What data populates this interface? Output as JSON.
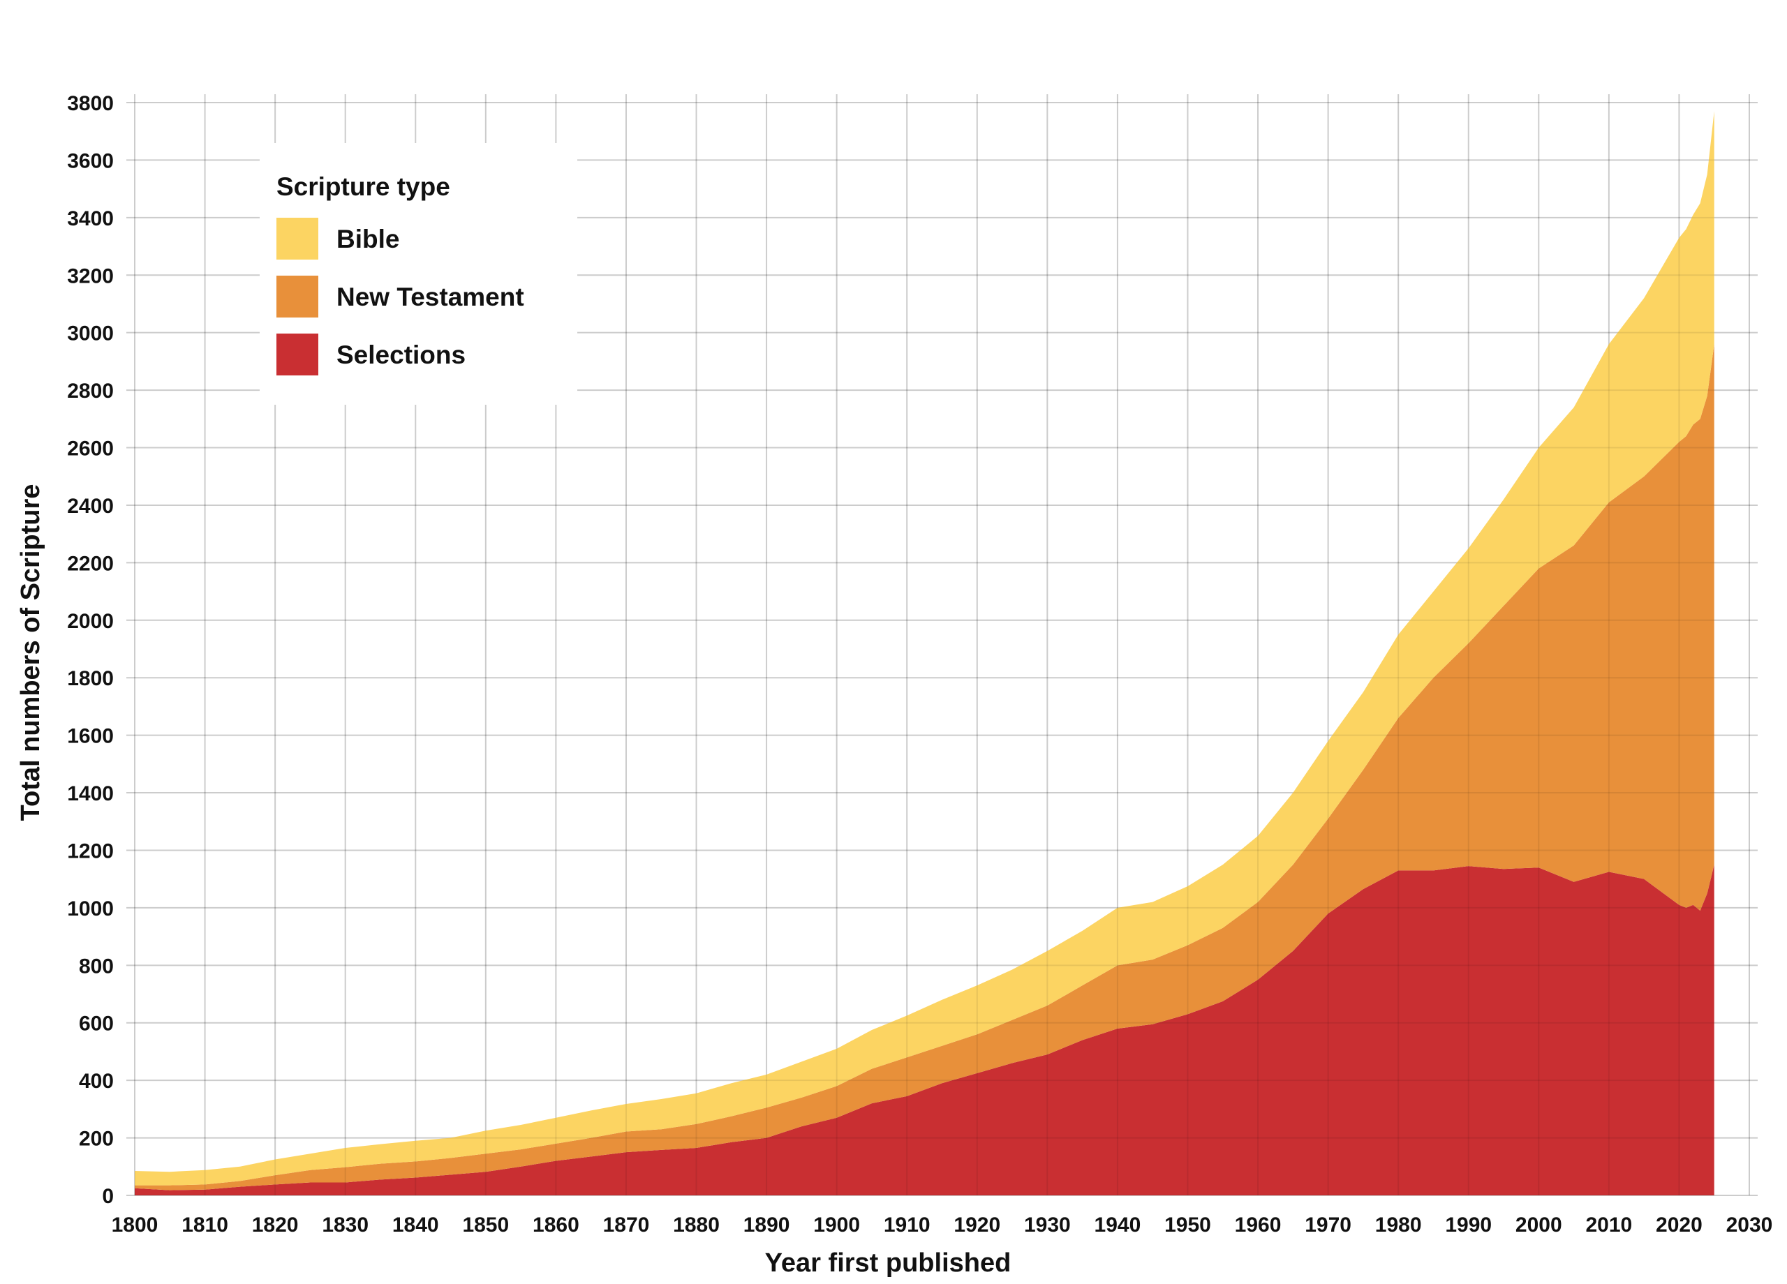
{
  "chart_data": {
    "type": "area",
    "stacked": true,
    "xlabel": "Year first published",
    "ylabel": "Total numbers of Scripture",
    "xlim": [
      1800,
      2030
    ],
    "ylim": [
      0,
      3800
    ],
    "xticks": [
      1800,
      1810,
      1820,
      1830,
      1840,
      1850,
      1860,
      1870,
      1880,
      1890,
      1900,
      1910,
      1920,
      1930,
      1940,
      1950,
      1960,
      1970,
      1980,
      1990,
      2000,
      2010,
      2020,
      2030
    ],
    "yticks": [
      0,
      200,
      400,
      600,
      800,
      1000,
      1200,
      1400,
      1600,
      1800,
      2000,
      2200,
      2400,
      2600,
      2800,
      3000,
      3200,
      3400,
      3600,
      3800
    ],
    "grid": true,
    "legend": {
      "title": "Scripture type",
      "placement": "top-left"
    },
    "x": [
      1800,
      1805,
      1810,
      1815,
      1820,
      1825,
      1830,
      1835,
      1840,
      1845,
      1850,
      1855,
      1860,
      1865,
      1870,
      1875,
      1880,
      1885,
      1890,
      1895,
      1900,
      1905,
      1910,
      1915,
      1920,
      1925,
      1930,
      1935,
      1940,
      1945,
      1950,
      1955,
      1960,
      1965,
      1970,
      1975,
      1980,
      1985,
      1990,
      1995,
      2000,
      2005,
      2010,
      2015,
      2020,
      2021,
      2022,
      2023,
      2024,
      2025
    ],
    "series": [
      {
        "name": "Selections",
        "color": "#C92F32",
        "values": [
          25,
          18,
          20,
          30,
          38,
          45,
          45,
          55,
          62,
          72,
          82,
          100,
          120,
          135,
          150,
          158,
          165,
          185,
          200,
          240,
          270,
          320,
          345,
          390,
          425,
          460,
          490,
          540,
          580,
          595,
          630,
          675,
          750,
          850,
          980,
          1065,
          1130,
          1130,
          1145,
          1135,
          1140,
          1090,
          1125,
          1100,
          1010,
          1000,
          1010,
          990,
          1050,
          1150
        ]
      },
      {
        "name": "New Testament",
        "color": "#E8903A",
        "values": [
          10,
          17,
          18,
          20,
          32,
          43,
          53,
          55,
          56,
          58,
          63,
          60,
          60,
          65,
          72,
          72,
          83,
          90,
          105,
          100,
          110,
          120,
          135,
          130,
          135,
          150,
          170,
          190,
          220,
          225,
          240,
          255,
          270,
          300,
          330,
          415,
          530,
          670,
          775,
          915,
          1040,
          1170,
          1285,
          1400,
          1610,
          1640,
          1670,
          1710,
          1730,
          1810
        ]
      },
      {
        "name": "Bible",
        "color": "#FCD462",
        "values": [
          50,
          47,
          50,
          50,
          55,
          57,
          67,
          68,
          72,
          70,
          80,
          85,
          90,
          95,
          96,
          105,
          107,
          115,
          115,
          125,
          130,
          135,
          145,
          160,
          170,
          175,
          190,
          190,
          200,
          200,
          205,
          220,
          230,
          250,
          270,
          270,
          290,
          300,
          330,
          370,
          420,
          480,
          550,
          620,
          710,
          720,
          730,
          750,
          770,
          810
        ]
      }
    ]
  }
}
